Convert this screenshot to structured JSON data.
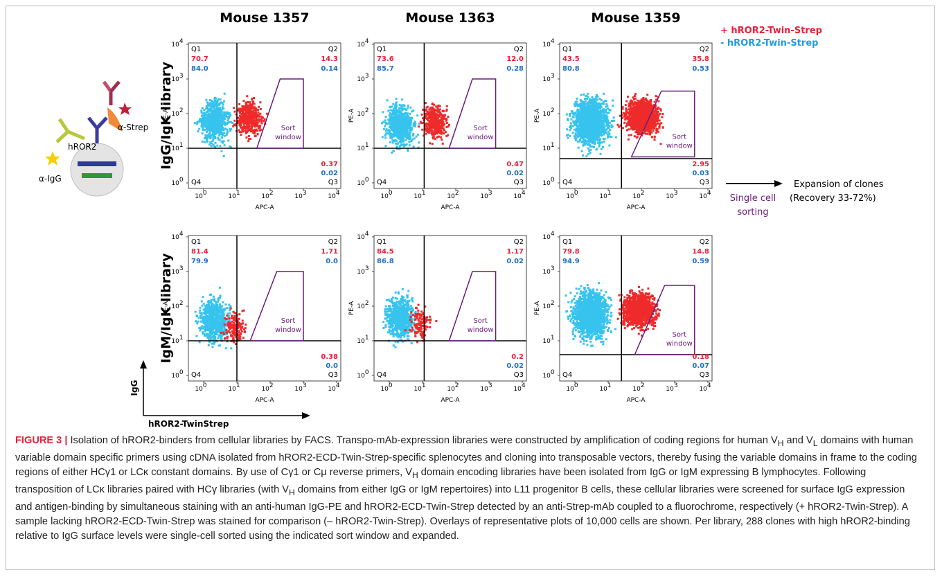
{
  "columns": [
    "Mouse 1357",
    "Mouse 1363",
    "Mouse 1359"
  ],
  "rows": [
    "IgG/IgK library",
    "IgM/IgK library"
  ],
  "axis": {
    "x": "APC-A",
    "y": "PE-A",
    "tick_base": "10",
    "tick_exponents": [
      "0",
      "1",
      "2",
      "3",
      "4"
    ]
  },
  "quadrant_labels": [
    "Q1",
    "Q2",
    "Q3",
    "Q4"
  ],
  "gate_label": [
    "Sort",
    "window"
  ],
  "legend": [
    "+ hROR2-Twin-Strep",
    "- hROR2-Twin-Strep"
  ],
  "panels": [
    {
      "q1": [
        "70.7",
        "84.0"
      ],
      "q2": [
        "14.3",
        "0.14"
      ],
      "q3": [
        "0.37",
        "0.02"
      ]
    },
    {
      "q1": [
        "73.6",
        "85.7"
      ],
      "q2": [
        "12.0",
        "0.28"
      ],
      "q3": [
        "0.47",
        "0.02"
      ]
    },
    {
      "q1": [
        "43.5",
        "80.8"
      ],
      "q2": [
        "35.8",
        "0.53"
      ],
      "q3": [
        "2.95",
        "0.03"
      ]
    },
    {
      "q1": [
        "81.4",
        "79.9"
      ],
      "q2": [
        "1.71",
        "0.0"
      ],
      "q3": [
        "0.38",
        "0.0"
      ]
    },
    {
      "q1": [
        "84.5",
        "86.8"
      ],
      "q2": [
        "1.17",
        "0.02"
      ],
      "q3": [
        "0.2",
        "0.02"
      ]
    },
    {
      "q1": [
        "79.8",
        "94.9"
      ],
      "q2": [
        "14.8",
        "0.59"
      ],
      "q3": [
        "0.18",
        "0.07"
      ]
    }
  ],
  "diagram": {
    "labels": [
      "α-Strep",
      "hROR2",
      "α-IgG"
    ],
    "axis_y": "IgG",
    "axis_x": "hROR2-TwinStrep"
  },
  "outcome": {
    "sorting": [
      "Single cell",
      "sorting"
    ],
    "expansion": [
      "Expansion of clones",
      "(Recovery 33-72%)"
    ]
  },
  "caption": {
    "label": "FIGURE 3 |",
    "runs": [
      {
        "text": " Isolation of hROR2-binders from cellular libraries by FACS. Transpo-mAb-expression libraries were constructed by amplification of coding regions for human V"
      },
      {
        "text": "H",
        "sub": true
      },
      {
        "text": " and V"
      },
      {
        "text": "L",
        "sub": true
      },
      {
        "text": " domains with human variable domain specific primers using cDNA isolated from hROR2-ECD-Twin-Strep-specific splenocytes and cloning into transposable vectors, thereby fusing the variable domains in frame to the coding regions of either HCγ1 or LCκ constant domains. By use of Cγ1 or Cμ reverse primers, V"
      },
      {
        "text": "H",
        "sub": true
      },
      {
        "text": " domain encoding libraries have been isolated from IgG or IgM expressing B lymphocytes. Following transposition of LCκ libraries paired with HCγ libraries (with V"
      },
      {
        "text": "H",
        "sub": true
      },
      {
        "text": " domains from either IgG or IgM repertoires) into L11 progenitor B cells, these cellular libraries were screened for surface IgG expression and antigen-binding by simultaneous staining with an anti-human IgG-PE and hROR2-ECD-Twin-Strep detected by an anti-Strep-mAb coupled to a fluorochrome, respectively (+ hROR2-Twin-Strep). A sample lacking hROR2-ECD-Twin-Strep was stained for comparison (– hROR2-Twin-Strep). Overlays of representative plots of 10,000 cells are shown. Per library, 288 clones with high hROR2-binding relative to IgG surface levels were single-cell sorted using the indicated sort window and expanded."
      }
    ]
  }
}
